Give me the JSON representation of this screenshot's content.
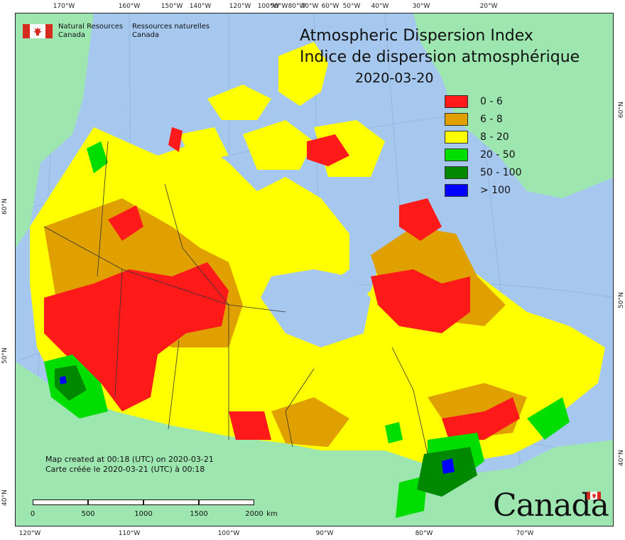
{
  "map": {
    "title_en": "Atmospheric Dispersion Index",
    "title_fr": "Indice de dispersion atmosphérique",
    "date": "2020-03-20",
    "org_en_line1": "Natural Resources",
    "org_en_line2": "Canada",
    "org_fr_line1": "Ressources naturelles",
    "org_fr_line2": "Canada",
    "credit_en": "Map created at 00:18 (UTC) on 2020-03-21",
    "credit_fr": "Carte créée le 2020-03-21 (UTC) à 00:18",
    "wordmark": "Canada",
    "colors": {
      "ocean": "#a6c8ef",
      "land_other": "#9ee6b0",
      "red": "#ff1a1a",
      "orange": "#e0a000",
      "yellow": "#ffff00",
      "green": "#00dd00",
      "dark_green": "#008800",
      "blue": "#0000ff",
      "flag_red": "#d52b1e"
    }
  },
  "legend": [
    {
      "label": "0 - 6",
      "color": "#ff1a1a"
    },
    {
      "label": "6 - 8",
      "color": "#e0a000"
    },
    {
      "label": "8 - 20",
      "color": "#ffff00"
    },
    {
      "label": "20 - 50",
      "color": "#00dd00"
    },
    {
      "label": "50 - 100",
      "color": "#008800"
    },
    {
      "label": "> 100",
      "color": "#0000ff"
    }
  ],
  "ticks": {
    "top": [
      "170°W",
      "160°W",
      "150°W",
      "140°W",
      "120°W",
      "100°W",
      "90°W",
      "80°W",
      "70°W",
      "60°W",
      "50°W",
      "40°W",
      "30°W",
      "20°W"
    ],
    "bottom": [
      "120°W",
      "110°W",
      "100°W",
      "90°W",
      "80°W",
      "70°W"
    ],
    "left": [
      "60°N",
      "50°N",
      "40°N"
    ],
    "right": [
      "60°N",
      "50°N",
      "40°N"
    ]
  },
  "scale_bar": {
    "labels": [
      "0",
      "500",
      "1000",
      "1500",
      "2000"
    ],
    "unit": "km"
  }
}
